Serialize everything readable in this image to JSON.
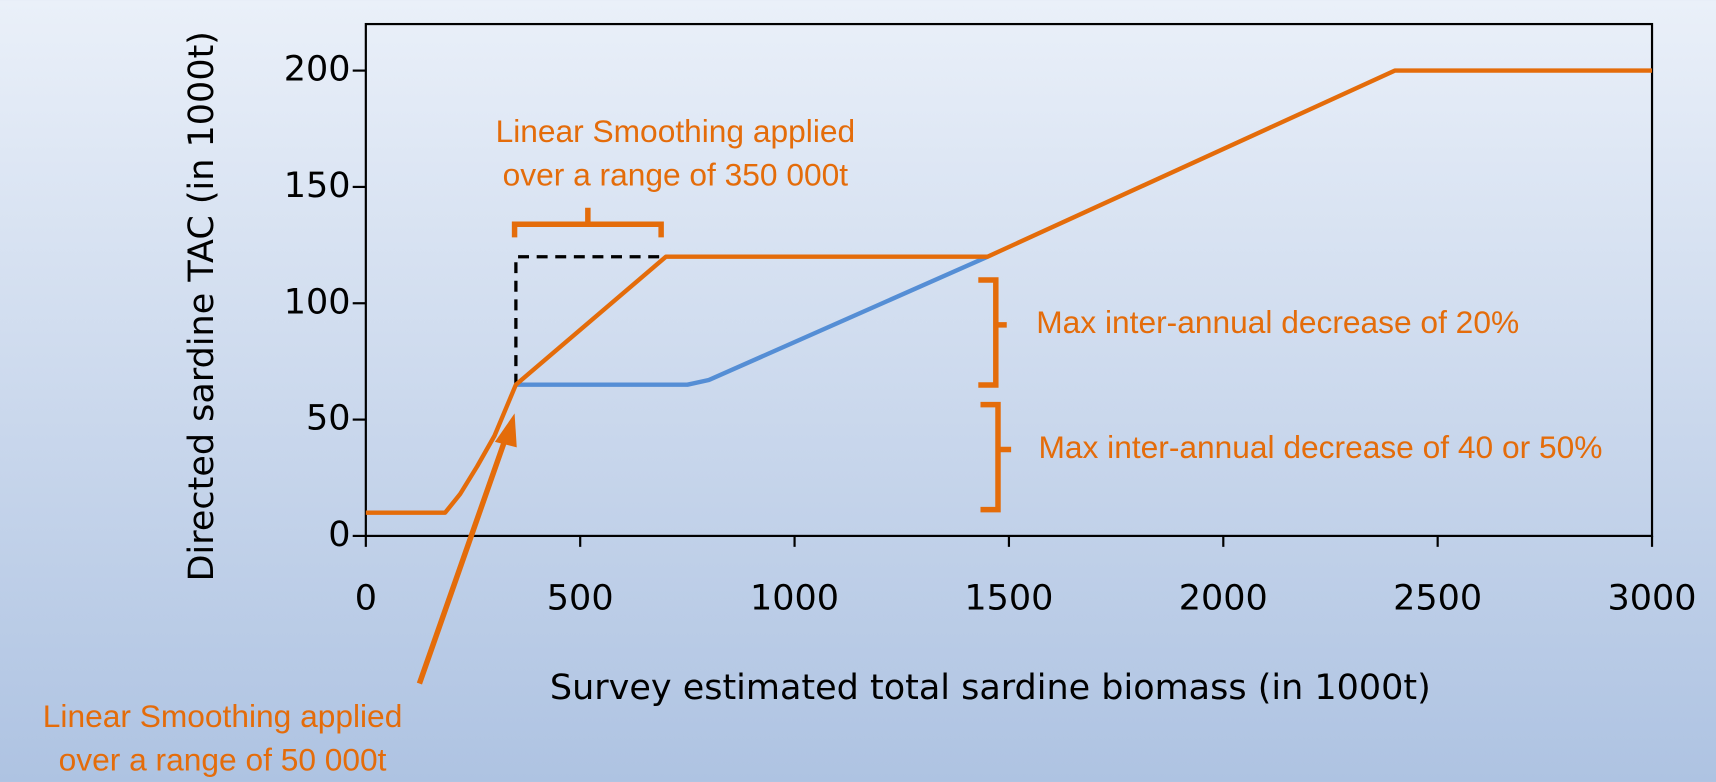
{
  "chart_data": {
    "type": "line",
    "xlabel": "Survey estimated total sardine biomass (in 1000t)",
    "ylabel": "Directed sardine TAC (in 1000t)",
    "xlim": [
      0,
      3000
    ],
    "xticks": [
      0,
      500,
      1000,
      1500,
      2000,
      2500,
      3000
    ],
    "ylim": [
      0,
      220
    ],
    "yticks": [
      0,
      50,
      100,
      150,
      200
    ],
    "series": [
      {
        "color": "#558ed5",
        "x": [
          350,
          750,
          800,
          1450
        ],
        "values": [
          65,
          65,
          67,
          120
        ]
      },
      {
        "color": "#000000",
        "dash": true,
        "x": [
          350,
          350,
          700
        ],
        "values": [
          65,
          120,
          120
        ]
      },
      {
        "color": "#e46c0a",
        "x": [
          0,
          185,
          220,
          260,
          300,
          350,
          700,
          1450,
          2400,
          2450,
          3000
        ],
        "values": [
          10,
          10,
          18,
          30,
          43,
          65,
          120,
          120,
          200,
          200,
          200
        ]
      }
    ],
    "annotations": [
      {
        "lines": [
          "Linear Smoothing applied",
          "over a range of 350 000t"
        ]
      },
      {
        "lines": [
          "Max inter-annual decrease of 20%"
        ]
      },
      {
        "lines": [
          "Max inter-annual decrease of 40 or 50%"
        ]
      },
      {
        "lines": [
          "Linear Smoothing applied",
          "over a range of 50 000t"
        ]
      }
    ]
  }
}
